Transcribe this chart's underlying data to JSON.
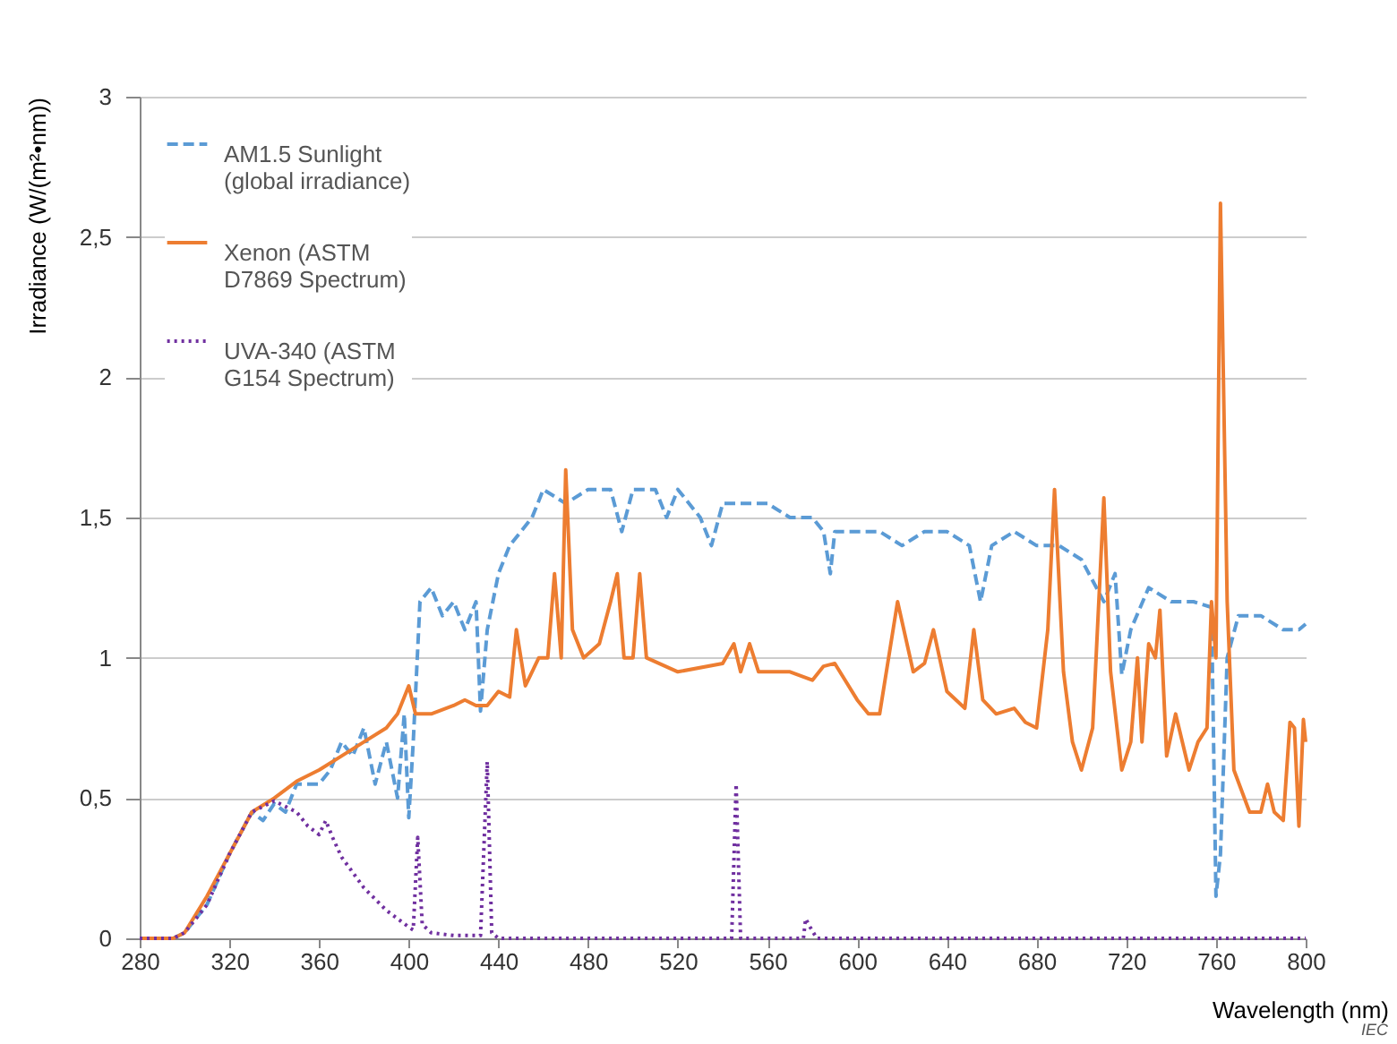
{
  "chart_data": {
    "type": "line",
    "xlabel": "Wavelength  (nm)",
    "ylabel": "Irradiance  (W/(m²•nm))",
    "xlim": [
      280,
      800
    ],
    "xticks": [
      280,
      320,
      360,
      400,
      440,
      480,
      520,
      560,
      600,
      640,
      680,
      720,
      760,
      800
    ],
    "ylim": [
      0,
      3
    ],
    "yticks": [
      0,
      {
        "value": 0.5,
        "label": "0,5"
      },
      1,
      {
        "value": 1.5,
        "label": "1,5"
      },
      2,
      {
        "value": 2.5,
        "label": "2,5"
      },
      3
    ],
    "grid": "y",
    "legend": "top left",
    "marker": "none",
    "annotations": [
      "IEC"
    ],
    "series": [
      {
        "name": "AM1.5 Sunlight\n(global irradiance)",
        "color": "#5b9bd5",
        "line_style": "dashed",
        "x": [
          280,
          295,
          300,
          310,
          320,
          330,
          335,
          340,
          345,
          350,
          360,
          365,
          370,
          375,
          380,
          385,
          390,
          395,
          398,
          400,
          402,
          405,
          410,
          415,
          420,
          425,
          430,
          432,
          435,
          440,
          445,
          450,
          455,
          460,
          470,
          480,
          490,
          495,
          500,
          510,
          515,
          520,
          530,
          535,
          540,
          550,
          560,
          570,
          580,
          585,
          588,
          590,
          600,
          610,
          620,
          630,
          640,
          650,
          655,
          660,
          670,
          680,
          690,
          700,
          710,
          715,
          718,
          722,
          730,
          740,
          750,
          758,
          760,
          762,
          765,
          770,
          780,
          790,
          797,
          800
        ],
        "values": [
          0,
          0,
          0.02,
          0.12,
          0.3,
          0.45,
          0.42,
          0.48,
          0.45,
          0.55,
          0.55,
          0.6,
          0.7,
          0.65,
          0.75,
          0.55,
          0.7,
          0.5,
          0.8,
          0.43,
          0.7,
          1.2,
          1.25,
          1.15,
          1.2,
          1.1,
          1.2,
          0.81,
          1.1,
          1.3,
          1.4,
          1.45,
          1.5,
          1.6,
          1.55,
          1.6,
          1.6,
          1.45,
          1.6,
          1.6,
          1.5,
          1.6,
          1.5,
          1.4,
          1.55,
          1.55,
          1.55,
          1.5,
          1.5,
          1.45,
          1.3,
          1.45,
          1.45,
          1.45,
          1.4,
          1.45,
          1.45,
          1.4,
          1.2,
          1.4,
          1.45,
          1.4,
          1.4,
          1.35,
          1.2,
          1.3,
          0.94,
          1.1,
          1.25,
          1.2,
          1.2,
          1.18,
          0.15,
          0.3,
          1.0,
          1.15,
          1.15,
          1.1,
          1.1,
          1.12
        ]
      },
      {
        "name": "Xenon (ASTM\nD7869 Spectrum)",
        "color": "#ed7d31",
        "line_style": "solid",
        "x": [
          280,
          295,
          300,
          310,
          320,
          330,
          340,
          350,
          360,
          370,
          380,
          390,
          395,
          400,
          403,
          410,
          420,
          425,
          430,
          435,
          440,
          445,
          448,
          452,
          458,
          462,
          465,
          468,
          470,
          473,
          478,
          485,
          490,
          493,
          496,
          500,
          503,
          506,
          520,
          540,
          545,
          548,
          552,
          556,
          570,
          580,
          585,
          590,
          600,
          605,
          610,
          618,
          625,
          630,
          634,
          640,
          648,
          652,
          656,
          662,
          670,
          675,
          680,
          685,
          688,
          692,
          696,
          700,
          705,
          710,
          713,
          718,
          722,
          725,
          727,
          730,
          733,
          735,
          738,
          742,
          748,
          752,
          756,
          758,
          760,
          762,
          765,
          768,
          775,
          780,
          783,
          786,
          790,
          793,
          795,
          797,
          799,
          800
        ],
        "values": [
          0,
          0,
          0.02,
          0.15,
          0.3,
          0.45,
          0.5,
          0.56,
          0.6,
          0.65,
          0.7,
          0.75,
          0.8,
          0.9,
          0.8,
          0.8,
          0.83,
          0.85,
          0.83,
          0.83,
          0.88,
          0.86,
          1.1,
          0.9,
          1.0,
          1.0,
          1.3,
          1.0,
          1.67,
          1.1,
          1.0,
          1.05,
          1.2,
          1.3,
          1.0,
          1.0,
          1.3,
          1.0,
          0.95,
          0.98,
          1.05,
          0.95,
          1.05,
          0.95,
          0.95,
          0.92,
          0.97,
          0.98,
          0.85,
          0.8,
          0.8,
          1.2,
          0.95,
          0.98,
          1.1,
          0.88,
          0.82,
          1.1,
          0.85,
          0.8,
          0.82,
          0.77,
          0.75,
          1.1,
          1.6,
          0.95,
          0.7,
          0.6,
          0.75,
          1.57,
          0.95,
          0.6,
          0.7,
          1.0,
          0.7,
          1.05,
          1.0,
          1.17,
          0.65,
          0.8,
          0.6,
          0.7,
          0.75,
          1.2,
          1.0,
          2.62,
          1.2,
          0.6,
          0.45,
          0.45,
          0.55,
          0.45,
          0.42,
          0.77,
          0.75,
          0.4,
          0.78,
          0.7
        ]
      },
      {
        "name": "UVA-340 (ASTM\nG154 Spectrum)",
        "color": "#7030a0",
        "line_style": "dotted",
        "x": [
          280,
          295,
          300,
          310,
          320,
          330,
          340,
          350,
          355,
          360,
          363,
          366,
          370,
          380,
          390,
          400,
          402,
          404,
          406,
          410,
          420,
          432,
          435,
          437,
          440,
          500,
          544,
          546,
          548,
          570,
          576,
          577,
          579,
          582,
          800
        ],
        "values": [
          0,
          0,
          0.02,
          0.12,
          0.3,
          0.45,
          0.49,
          0.45,
          0.4,
          0.37,
          0.42,
          0.36,
          0.29,
          0.18,
          0.1,
          0.04,
          0.03,
          0.36,
          0.05,
          0.02,
          0.01,
          0.01,
          0.63,
          0.02,
          0,
          0,
          0,
          0.55,
          0,
          0,
          0,
          0.07,
          0.04,
          0,
          0
        ]
      }
    ]
  }
}
